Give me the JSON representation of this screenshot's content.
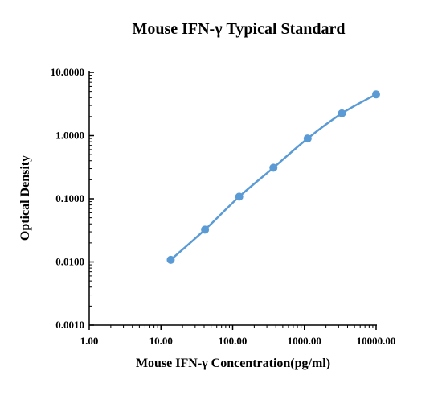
{
  "chart_data": {
    "type": "scatter",
    "title": "Mouse IFN-γ Typical Standard",
    "xlabel": "Mouse IFN-γ Concentration(pg/ml)",
    "ylabel": "Optical Density",
    "x_scale": "log",
    "y_scale": "log",
    "xlim": [
      1,
      10000
    ],
    "ylim": [
      0.001,
      10
    ],
    "x_ticks": [
      1,
      10,
      100,
      1000,
      10000
    ],
    "x_tick_labels": [
      "1.00",
      "10.00",
      "100.00",
      "1000.00",
      "10000.00"
    ],
    "y_ticks": [
      0.001,
      0.01,
      0.1,
      1,
      10
    ],
    "y_tick_labels": [
      "0.0010",
      "0.0100",
      "0.1000",
      "1.0000",
      "10.0000"
    ],
    "grid": false,
    "legend": "none",
    "color": "#5b9bd5",
    "series": [
      {
        "x": [
          13.7,
          41.2,
          123.5,
          370.4,
          1111,
          3333,
          10000
        ],
        "y": [
          0.0108,
          0.0325,
          0.108,
          0.31,
          0.9,
          2.25,
          4.5
        ],
        "line": "smooth"
      }
    ]
  }
}
